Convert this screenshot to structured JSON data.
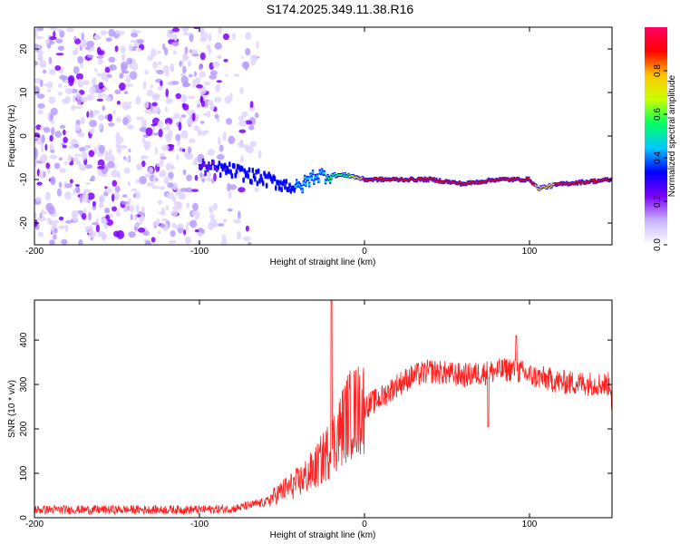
{
  "title": "S174.2025.349.11.38.R16",
  "chart_data": [
    {
      "type": "heatmap",
      "xlabel": "Height of straight line (km)",
      "ylabel": "Frequency (Hz)",
      "xlim": [
        -200,
        150
      ],
      "ylim": [
        -25,
        25
      ],
      "xticks": [
        -200,
        -100,
        0,
        100
      ],
      "xtick_labels": [
        "-200",
        "-100",
        "0",
        "100"
      ],
      "yticks": [
        -20,
        -10,
        0,
        10,
        20
      ],
      "ytick_labels": [
        "-20",
        "-10",
        "0",
        "10",
        "20"
      ],
      "colorbar": {
        "label": "Normalized spectral amplitude",
        "range": [
          0,
          1
        ],
        "ticks": [
          0.0,
          0.2,
          0.4,
          0.6,
          0.8
        ],
        "tick_labels": [
          "0.0",
          "0.2",
          "0.4",
          "0.6",
          "0.8"
        ],
        "colors": [
          "#ffffff",
          "#c8b4ff",
          "#7f00ff",
          "#0000ff",
          "#00c8ff",
          "#00ff64",
          "#c8ff00",
          "#ffc800",
          "#ff0000",
          "#ff0064"
        ]
      },
      "noise_region": {
        "x_range": [
          -200,
          -60
        ],
        "freq_range": [
          -25,
          25
        ],
        "amplitude": 0.15
      },
      "signal_track": {
        "x": [
          -100,
          -80,
          -60,
          -40,
          -30,
          -20,
          -10,
          0,
          20,
          40,
          60,
          80,
          100,
          105,
          120,
          150
        ],
        "freq": [
          -7,
          -8,
          -10,
          -12,
          -9,
          -9,
          -9,
          -10,
          -10,
          -10,
          -11,
          -10,
          -10,
          -12,
          -11,
          -10
        ],
        "amplitude": [
          0.25,
          0.3,
          0.3,
          0.4,
          0.45,
          0.55,
          0.6,
          0.85,
          0.9,
          0.9,
          0.85,
          0.9,
          0.9,
          0.8,
          0.85,
          0.9
        ]
      }
    },
    {
      "type": "line",
      "xlabel": "Height of straight line (km)",
      "ylabel": "SNR (10 * v/v)",
      "xlim": [
        -200,
        150
      ],
      "ylim": [
        0,
        490
      ],
      "xticks": [
        -200,
        -100,
        0,
        100
      ],
      "xtick_labels": [
        "-200",
        "-100",
        "0",
        "100"
      ],
      "yticks": [
        0,
        100,
        200,
        300,
        400
      ],
      "ytick_labels": [
        "0",
        "100",
        "200",
        "300",
        "400"
      ],
      "color": "#ff2020",
      "trend": {
        "x": [
          -200,
          -150,
          -100,
          -80,
          -60,
          -50,
          -40,
          -30,
          -20,
          -10,
          0,
          10,
          20,
          30,
          40,
          60,
          80,
          90,
          100,
          120,
          150
        ],
        "y": [
          18,
          18,
          18,
          20,
          35,
          60,
          80,
          110,
          160,
          230,
          250,
          270,
          300,
          320,
          330,
          320,
          330,
          335,
          320,
          305,
          300
        ]
      },
      "spikes": [
        {
          "x": -20,
          "y": 490
        },
        {
          "x": 92,
          "y": 410
        },
        {
          "x": 75,
          "y": 205
        },
        {
          "x": 150,
          "y": 245
        }
      ]
    }
  ]
}
